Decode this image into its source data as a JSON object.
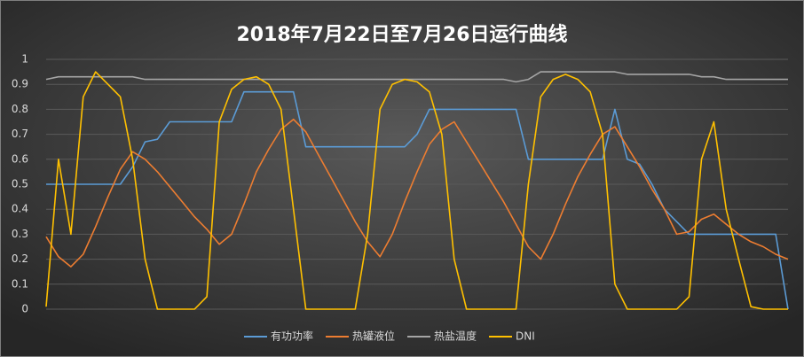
{
  "chart_data": {
    "type": "line",
    "title": "2018年7月22日至7月26日运行曲线",
    "ylim": [
      0,
      1
    ],
    "yticks": [
      0,
      0.1,
      0.2,
      0.3,
      0.4,
      0.5,
      0.6,
      0.7,
      0.8,
      0.9,
      1
    ],
    "grid": true,
    "legend": "bottom",
    "series": [
      {
        "name": "有功功率",
        "color": "#5b9bd5",
        "values": [
          0.5,
          0.5,
          0.5,
          0.5,
          0.5,
          0.5,
          0.5,
          0.57,
          0.67,
          0.68,
          0.75,
          0.75,
          0.75,
          0.75,
          0.75,
          0.75,
          0.87,
          0.87,
          0.87,
          0.87,
          0.87,
          0.65,
          0.65,
          0.65,
          0.65,
          0.65,
          0.65,
          0.65,
          0.65,
          0.65,
          0.7,
          0.8,
          0.8,
          0.8,
          0.8,
          0.8,
          0.8,
          0.8,
          0.8,
          0.6,
          0.6,
          0.6,
          0.6,
          0.6,
          0.6,
          0.6,
          0.8,
          0.6,
          0.58,
          0.5,
          0.4,
          0.35,
          0.3,
          0.3,
          0.3,
          0.3,
          0.3,
          0.3,
          0.3,
          0.3,
          0
        ]
      },
      {
        "name": "热罐液位",
        "color": "#ed7d31",
        "values": [
          0.29,
          0.21,
          0.17,
          0.22,
          0.33,
          0.45,
          0.56,
          0.63,
          0.6,
          0.55,
          0.49,
          0.43,
          0.37,
          0.32,
          0.26,
          0.3,
          0.42,
          0.55,
          0.64,
          0.72,
          0.76,
          0.71,
          0.62,
          0.53,
          0.44,
          0.35,
          0.27,
          0.21,
          0.3,
          0.43,
          0.55,
          0.66,
          0.72,
          0.75,
          0.67,
          0.59,
          0.51,
          0.43,
          0.34,
          0.25,
          0.2,
          0.3,
          0.42,
          0.53,
          0.62,
          0.7,
          0.73,
          0.65,
          0.57,
          0.48,
          0.4,
          0.3,
          0.31,
          0.36,
          0.38,
          0.34,
          0.3,
          0.27,
          0.25,
          0.22,
          0.2
        ]
      },
      {
        "name": "热盐温度",
        "color": "#a5a5a5",
        "values": [
          0.92,
          0.93,
          0.93,
          0.93,
          0.93,
          0.93,
          0.93,
          0.93,
          0.92,
          0.92,
          0.92,
          0.92,
          0.92,
          0.92,
          0.92,
          0.92,
          0.92,
          0.92,
          0.92,
          0.92,
          0.92,
          0.92,
          0.92,
          0.92,
          0.92,
          0.92,
          0.92,
          0.92,
          0.92,
          0.92,
          0.92,
          0.92,
          0.92,
          0.92,
          0.92,
          0.92,
          0.92,
          0.92,
          0.91,
          0.92,
          0.95,
          0.95,
          0.95,
          0.95,
          0.95,
          0.95,
          0.95,
          0.94,
          0.94,
          0.94,
          0.94,
          0.94,
          0.94,
          0.93,
          0.93,
          0.92,
          0.92,
          0.92,
          0.92,
          0.92,
          0.92
        ]
      },
      {
        "name": "DNI",
        "color": "#ffc000",
        "values": [
          0.01,
          0.6,
          0.3,
          0.85,
          0.95,
          0.9,
          0.85,
          0.6,
          0.2,
          0,
          0,
          0,
          0,
          0.05,
          0.75,
          0.88,
          0.92,
          0.93,
          0.9,
          0.8,
          0.4,
          0,
          0,
          0,
          0,
          0,
          0.3,
          0.8,
          0.9,
          0.92,
          0.91,
          0.87,
          0.7,
          0.2,
          0,
          0,
          0,
          0,
          0,
          0.5,
          0.85,
          0.92,
          0.94,
          0.92,
          0.87,
          0.7,
          0.1,
          0,
          0,
          0,
          0,
          0,
          0.05,
          0.6,
          0.75,
          0.4,
          0.2,
          0.01,
          0,
          0,
          0
        ]
      }
    ]
  }
}
